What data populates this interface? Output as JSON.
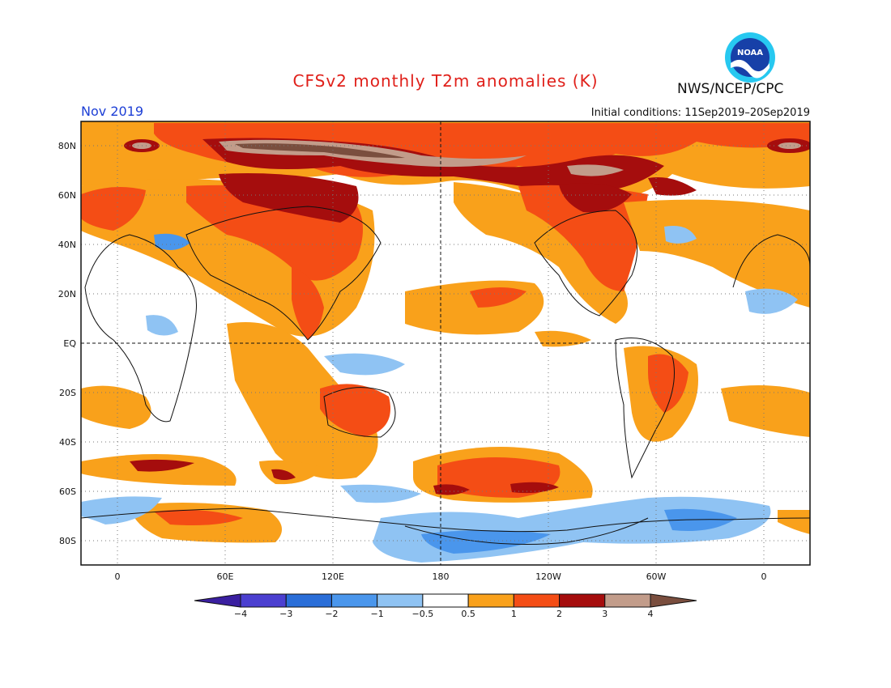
{
  "title": "CFSv2 monthly T2m anomalies (K)",
  "agency": "NWS/NCEP/CPC",
  "logo_text": "NOAA",
  "target_month": "Nov 2019",
  "initial_conditions": "Initial conditions: 11Sep2019–20Sep2019",
  "map": {
    "lat_labels": [
      "80N",
      "60N",
      "40N",
      "20N",
      "EQ",
      "20S",
      "40S",
      "60S",
      "80S"
    ],
    "lon_labels": [
      "0",
      "60E",
      "120E",
      "180",
      "120W",
      "60W",
      "0"
    ]
  },
  "colorbar": {
    "tick_labels": [
      "−4",
      "−3",
      "−2",
      "−1",
      "−0.5",
      "0.5",
      "1",
      "2",
      "3",
      "4"
    ],
    "colors": [
      "#3a1fa0",
      "#4b3fd0",
      "#2a6ed8",
      "#4a96ec",
      "#8fc3f3",
      "#ffffff",
      "#f9a11b",
      "#f44d15",
      "#a50d0d",
      "#c29c8a",
      "#7a4e3e"
    ]
  }
}
